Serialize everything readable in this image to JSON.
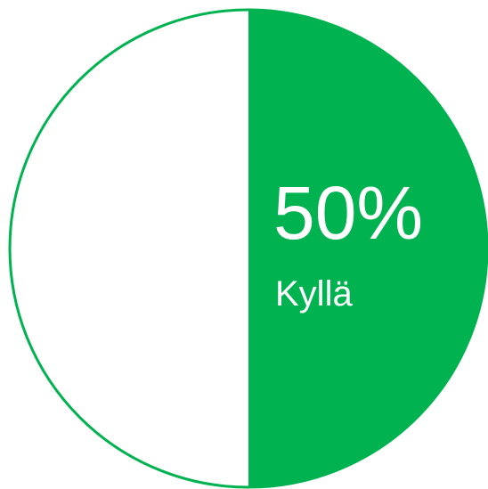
{
  "chart_data": {
    "type": "pie",
    "slices": [
      {
        "label": "Kyllä",
        "value": 50,
        "display": "50%",
        "color": "#00b350",
        "labeled": true
      },
      {
        "label": "",
        "value": 50,
        "color": "#ffffff",
        "labeled": false
      }
    ],
    "outline_color": "#00b350",
    "title": ""
  }
}
